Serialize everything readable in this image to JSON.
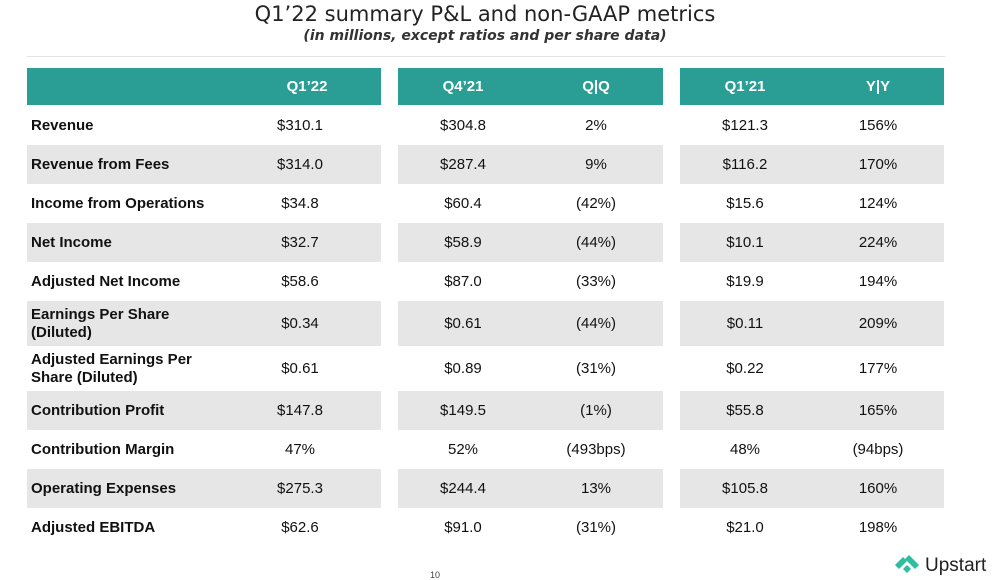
{
  "title": "Q1’22 summary P&L and non-GAAP metrics",
  "subtitle": "(in millions, except ratios and per share data)",
  "headers": {
    "q1_22": "Q1’22",
    "q4_21": "Q4’21",
    "qq": "Q|Q",
    "q1_21": "Q1’21",
    "yy": "Y|Y"
  },
  "colors": {
    "header_bg": "#2a9d94",
    "band_bg": "#e6e6e6",
    "logo": "#2bbfa0"
  },
  "rows": [
    {
      "label": "Revenue",
      "q1_22": "$310.1",
      "q4_21": "$304.8",
      "qq": "2%",
      "q1_21": "$121.3",
      "yy": "156%"
    },
    {
      "label": "Revenue from Fees",
      "q1_22": "$314.0",
      "q4_21": "$287.4",
      "qq": "9%",
      "q1_21": "$116.2",
      "yy": "170%"
    },
    {
      "label": "Income from Operations",
      "q1_22": "$34.8",
      "q4_21": "$60.4",
      "qq": "(42%)",
      "q1_21": "$15.6",
      "yy": "124%"
    },
    {
      "label": "Net Income",
      "q1_22": "$32.7",
      "q4_21": "$58.9",
      "qq": "(44%)",
      "q1_21": "$10.1",
      "yy": "224%"
    },
    {
      "label": "Adjusted Net Income",
      "q1_22": "$58.6",
      "q4_21": "$87.0",
      "qq": "(33%)",
      "q1_21": "$19.9",
      "yy": "194%"
    },
    {
      "label": "Earnings Per Share (Diluted)",
      "q1_22": "$0.34",
      "q4_21": "$0.61",
      "qq": "(44%)",
      "q1_21": "$0.11",
      "yy": "209%"
    },
    {
      "label": "Adjusted Earnings Per Share (Diluted)",
      "q1_22": "$0.61",
      "q4_21": "$0.89",
      "qq": "(31%)",
      "q1_21": "$0.22",
      "yy": "177%"
    },
    {
      "label": "Contribution Profit",
      "q1_22": "$147.8",
      "q4_21": "$149.5",
      "qq": "(1%)",
      "q1_21": "$55.8",
      "yy": "165%"
    },
    {
      "label": "Contribution Margin",
      "q1_22": "47%",
      "q4_21": "52%",
      "qq": "(493bps)",
      "q1_21": "48%",
      "yy": "(94bps)"
    },
    {
      "label": "Operating Expenses",
      "q1_22": "$275.3",
      "q4_21": "$244.4",
      "qq": "13%",
      "q1_21": "$105.8",
      "yy": "160%"
    },
    {
      "label": "Adjusted EBITDA",
      "q1_22": "$62.6",
      "q4_21": "$91.0",
      "qq": "(31%)",
      "q1_21": "$21.0",
      "yy": "198%"
    }
  ],
  "logo": {
    "text": "Upstart",
    "icon": "upstart-logo-icon"
  },
  "page_number": "10"
}
